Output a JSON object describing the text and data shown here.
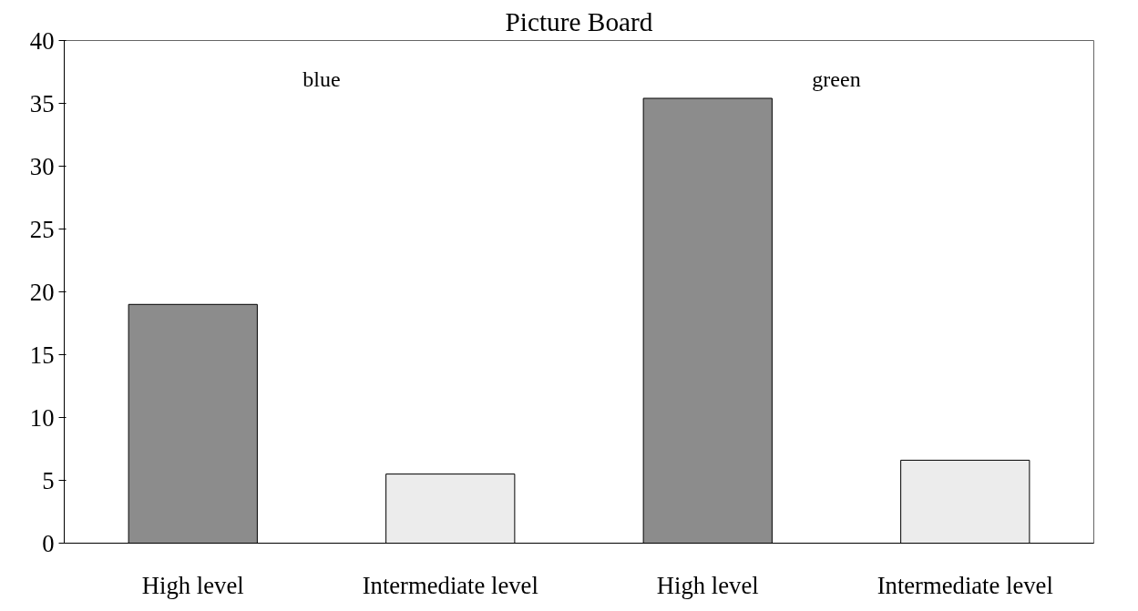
{
  "chart_data": {
    "type": "bar",
    "title": "Picture Board",
    "categories": [
      "High level",
      "Intermediate level",
      "High level",
      "Intermediate level"
    ],
    "values": [
      19.0,
      5.5,
      35.4,
      6.6
    ],
    "colors": [
      "#8c8c8c",
      "#ececec",
      "#8c8c8c",
      "#ececec"
    ],
    "ylim": [
      0,
      40
    ],
    "yticks": [
      0,
      5,
      10,
      15,
      20,
      25,
      30,
      35,
      40
    ],
    "annotations": [
      "blue",
      "green"
    ],
    "grid": false
  }
}
